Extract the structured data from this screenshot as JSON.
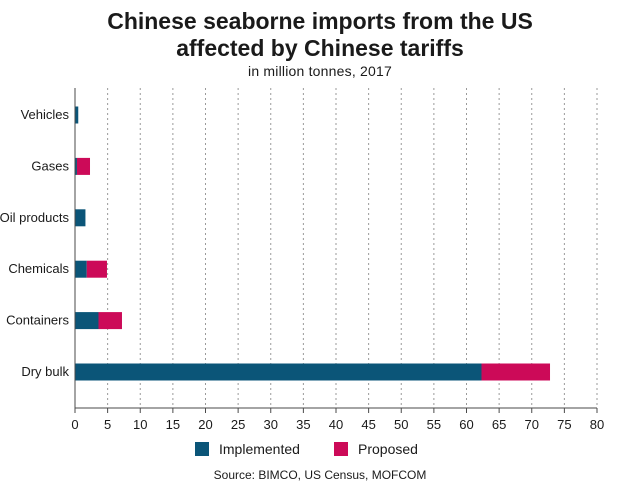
{
  "chart_data": {
    "type": "bar",
    "orientation": "horizontal",
    "stacked": true,
    "title_line1": "Chinese seaborne imports from the US",
    "title_line2": "affected by Chinese tariffs",
    "subtitle": "in million tonnes, 2017",
    "categories": [
      "Vehicles",
      "Gases",
      "Oil products",
      "Chemicals",
      "Containers",
      "Dry bulk"
    ],
    "series": [
      {
        "name": "Implemented",
        "color": "#0b5578",
        "values": [
          0.5,
          0.3,
          1.6,
          1.8,
          3.6,
          62.3
        ]
      },
      {
        "name": "Proposed",
        "color": "#cc0a58",
        "values": [
          0,
          2.0,
          0,
          3.1,
          3.6,
          10.5
        ]
      }
    ],
    "xlim": [
      0,
      80
    ],
    "xticks": [
      0,
      5,
      10,
      15,
      20,
      25,
      30,
      35,
      40,
      45,
      50,
      55,
      60,
      65,
      70,
      75,
      80
    ],
    "grid": {
      "x": true,
      "style": "dotted"
    },
    "legend_position": "bottom",
    "source": "Source: BIMCO, US Census, MOFCOM"
  }
}
